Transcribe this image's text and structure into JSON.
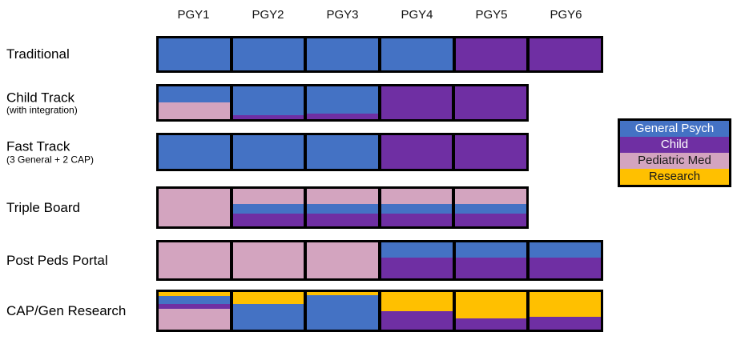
{
  "columns": [
    "PGY1",
    "PGY2",
    "PGY3",
    "PGY4",
    "PGY5",
    "PGY6"
  ],
  "palette": {
    "general_psych": "#4472C4",
    "child": "#6F2FA3",
    "pediatric_med": "#D3A4BF",
    "research": "#FFC000"
  },
  "legend": {
    "items": [
      {
        "label": "General Psych",
        "key": "general_psych",
        "text_color": "#FFFFFF"
      },
      {
        "label": "Child",
        "key": "child",
        "text_color": "#FFFFFF"
      },
      {
        "label": "Pediatric Med",
        "key": "pediatric_med",
        "text_color": "#1A1A1A"
      },
      {
        "label": "Research",
        "key": "research",
        "text_color": "#1A1A1A"
      }
    ]
  },
  "rows": [
    {
      "label": "Traditional",
      "sublabel": "",
      "segments": [
        {
          "column": "PGY1",
          "stripes": [
            {
              "key": "general_psych",
              "pct": 100
            }
          ]
        },
        {
          "column": "PGY2",
          "stripes": [
            {
              "key": "general_psych",
              "pct": 100
            }
          ]
        },
        {
          "column": "PGY3",
          "stripes": [
            {
              "key": "general_psych",
              "pct": 100
            }
          ]
        },
        {
          "column": "PGY4",
          "stripes": [
            {
              "key": "general_psych",
              "pct": 100
            }
          ]
        },
        {
          "column": "PGY5",
          "stripes": [
            {
              "key": "child",
              "pct": 100
            }
          ]
        },
        {
          "column": "PGY6",
          "stripes": [
            {
              "key": "child",
              "pct": 100
            }
          ]
        }
      ]
    },
    {
      "label": "Child Track",
      "sublabel": "(with integration)",
      "segments": [
        {
          "column": "PGY1",
          "stripes": [
            {
              "key": "general_psych",
              "pct": 48
            },
            {
              "key": "pediatric_med",
              "pct": 52
            }
          ]
        },
        {
          "column": "PGY2",
          "stripes": [
            {
              "key": "general_psych",
              "pct": 88
            },
            {
              "key": "child",
              "pct": 12
            }
          ]
        },
        {
          "column": "PGY3",
          "stripes": [
            {
              "key": "general_psych",
              "pct": 84
            },
            {
              "key": "child",
              "pct": 16
            }
          ]
        },
        {
          "column": "PGY4",
          "stripes": [
            {
              "key": "child",
              "pct": 100
            }
          ]
        },
        {
          "column": "PGY5",
          "stripes": [
            {
              "key": "child",
              "pct": 100
            }
          ]
        }
      ]
    },
    {
      "label": "Fast Track",
      "sublabel": "(3 General + 2 CAP)",
      "segments": [
        {
          "column": "PGY1",
          "stripes": [
            {
              "key": "general_psych",
              "pct": 100
            }
          ]
        },
        {
          "column": "PGY2",
          "stripes": [
            {
              "key": "general_psych",
              "pct": 100
            }
          ]
        },
        {
          "column": "PGY3",
          "stripes": [
            {
              "key": "general_psych",
              "pct": 100
            }
          ]
        },
        {
          "column": "PGY4",
          "stripes": [
            {
              "key": "child",
              "pct": 100
            }
          ]
        },
        {
          "column": "PGY5",
          "stripes": [
            {
              "key": "child",
              "pct": 100
            }
          ]
        }
      ]
    },
    {
      "label": "Triple Board",
      "sublabel": "",
      "segments": [
        {
          "column": "PGY1",
          "stripes": [
            {
              "key": "pediatric_med",
              "pct": 100
            }
          ]
        },
        {
          "column": "PGY2",
          "stripes": [
            {
              "key": "pediatric_med",
              "pct": 41
            },
            {
              "key": "general_psych",
              "pct": 26
            },
            {
              "key": "child",
              "pct": 33
            }
          ]
        },
        {
          "column": "PGY3",
          "stripes": [
            {
              "key": "pediatric_med",
              "pct": 41
            },
            {
              "key": "general_psych",
              "pct": 26
            },
            {
              "key": "child",
              "pct": 33
            }
          ]
        },
        {
          "column": "PGY4",
          "stripes": [
            {
              "key": "pediatric_med",
              "pct": 41
            },
            {
              "key": "general_psych",
              "pct": 26
            },
            {
              "key": "child",
              "pct": 33
            }
          ]
        },
        {
          "column": "PGY5",
          "stripes": [
            {
              "key": "pediatric_med",
              "pct": 41
            },
            {
              "key": "general_psych",
              "pct": 26
            },
            {
              "key": "child",
              "pct": 33
            }
          ]
        }
      ]
    },
    {
      "label": "Post Peds Portal",
      "sublabel": "",
      "segments": [
        {
          "column": "PGY1",
          "stripes": [
            {
              "key": "pediatric_med",
              "pct": 100
            }
          ]
        },
        {
          "column": "PGY2",
          "stripes": [
            {
              "key": "pediatric_med",
              "pct": 100
            }
          ]
        },
        {
          "column": "PGY3",
          "stripes": [
            {
              "key": "pediatric_med",
              "pct": 100
            }
          ]
        },
        {
          "column": "PGY4",
          "stripes": [
            {
              "key": "general_psych",
              "pct": 43
            },
            {
              "key": "child",
              "pct": 57
            }
          ]
        },
        {
          "column": "PGY5",
          "stripes": [
            {
              "key": "general_psych",
              "pct": 43
            },
            {
              "key": "child",
              "pct": 57
            }
          ]
        },
        {
          "column": "PGY6",
          "stripes": [
            {
              "key": "general_psych",
              "pct": 43
            },
            {
              "key": "child",
              "pct": 57
            }
          ]
        }
      ]
    },
    {
      "label": "CAP/Gen Research",
      "sublabel": "",
      "segments": [
        {
          "column": "PGY1",
          "stripes": [
            {
              "key": "research",
              "pct": 11
            },
            {
              "key": "general_psych",
              "pct": 21
            },
            {
              "key": "child",
              "pct": 13
            },
            {
              "key": "pediatric_med",
              "pct": 55
            }
          ]
        },
        {
          "column": "PGY2",
          "stripes": [
            {
              "key": "research",
              "pct": 32
            },
            {
              "key": "general_psych",
              "pct": 68
            }
          ]
        },
        {
          "column": "PGY3",
          "stripes": [
            {
              "key": "research",
              "pct": 9
            },
            {
              "key": "general_psych",
              "pct": 91
            }
          ]
        },
        {
          "column": "PGY4",
          "stripes": [
            {
              "key": "research",
              "pct": 52
            },
            {
              "key": "child",
              "pct": 48
            }
          ]
        },
        {
          "column": "PGY5",
          "stripes": [
            {
              "key": "research",
              "pct": 70
            },
            {
              "key": "child",
              "pct": 30
            }
          ]
        },
        {
          "column": "PGY6",
          "stripes": [
            {
              "key": "research",
              "pct": 66
            },
            {
              "key": "child",
              "pct": 34
            }
          ]
        }
      ]
    }
  ]
}
